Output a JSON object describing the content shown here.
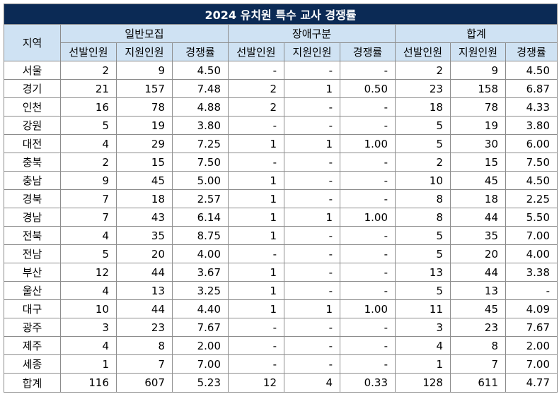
{
  "title": "2024 유치원 특수 교사 경쟁률",
  "header": {
    "region": "지역",
    "groups": [
      "일반모집",
      "장애구분",
      "합계"
    ],
    "sub": [
      "선발인원",
      "지원인원",
      "경쟁률",
      "선발인원",
      "지원인원",
      "경쟁률",
      "선발인원",
      "지원인원",
      "경쟁률"
    ]
  },
  "rows": [
    {
      "region": "서울",
      "cells": [
        "2",
        "9",
        "4.50",
        "-",
        "-",
        "-",
        "2",
        "9",
        "4.50"
      ]
    },
    {
      "region": "경기",
      "cells": [
        "21",
        "157",
        "7.48",
        "2",
        "1",
        "0.50",
        "23",
        "158",
        "6.87"
      ]
    },
    {
      "region": "인천",
      "cells": [
        "16",
        "78",
        "4.88",
        "2",
        "-",
        "-",
        "18",
        "78",
        "4.33"
      ]
    },
    {
      "region": "강원",
      "cells": [
        "5",
        "19",
        "3.80",
        "-",
        "-",
        "-",
        "5",
        "19",
        "3.80"
      ]
    },
    {
      "region": "대전",
      "cells": [
        "4",
        "29",
        "7.25",
        "1",
        "1",
        "1.00",
        "5",
        "30",
        "6.00"
      ]
    },
    {
      "region": "충북",
      "cells": [
        "2",
        "15",
        "7.50",
        "-",
        "-",
        "-",
        "2",
        "15",
        "7.50"
      ]
    },
    {
      "region": "충남",
      "cells": [
        "9",
        "45",
        "5.00",
        "1",
        "-",
        "-",
        "10",
        "45",
        "4.50"
      ]
    },
    {
      "region": "경북",
      "cells": [
        "7",
        "18",
        "2.57",
        "1",
        "-",
        "-",
        "8",
        "18",
        "2.25"
      ]
    },
    {
      "region": "경남",
      "cells": [
        "7",
        "43",
        "6.14",
        "1",
        "1",
        "1.00",
        "8",
        "44",
        "5.50"
      ]
    },
    {
      "region": "전북",
      "cells": [
        "4",
        "35",
        "8.75",
        "1",
        "-",
        "-",
        "5",
        "35",
        "7.00"
      ]
    },
    {
      "region": "전남",
      "cells": [
        "5",
        "20",
        "4.00",
        "-",
        "-",
        "-",
        "5",
        "20",
        "4.00"
      ]
    },
    {
      "region": "부산",
      "cells": [
        "12",
        "44",
        "3.67",
        "1",
        "-",
        "-",
        "13",
        "44",
        "3.38"
      ]
    },
    {
      "region": "울산",
      "cells": [
        "4",
        "13",
        "3.25",
        "1",
        "-",
        "-",
        "5",
        "13",
        "-"
      ]
    },
    {
      "region": "대구",
      "cells": [
        "10",
        "44",
        "4.40",
        "1",
        "1",
        "1.00",
        "11",
        "45",
        "4.09"
      ]
    },
    {
      "region": "광주",
      "cells": [
        "3",
        "23",
        "7.67",
        "-",
        "-",
        "-",
        "3",
        "23",
        "7.67"
      ]
    },
    {
      "region": "제주",
      "cells": [
        "4",
        "8",
        "2.00",
        "-",
        "-",
        "-",
        "4",
        "8",
        "2.00"
      ]
    },
    {
      "region": "세종",
      "cells": [
        "1",
        "7",
        "7.00",
        "-",
        "-",
        "-",
        "1",
        "7",
        "7.00"
      ]
    },
    {
      "region": "합계",
      "cells": [
        "116",
        "607",
        "5.23",
        "12",
        "4",
        "0.33",
        "128",
        "611",
        "4.77"
      ]
    }
  ]
}
